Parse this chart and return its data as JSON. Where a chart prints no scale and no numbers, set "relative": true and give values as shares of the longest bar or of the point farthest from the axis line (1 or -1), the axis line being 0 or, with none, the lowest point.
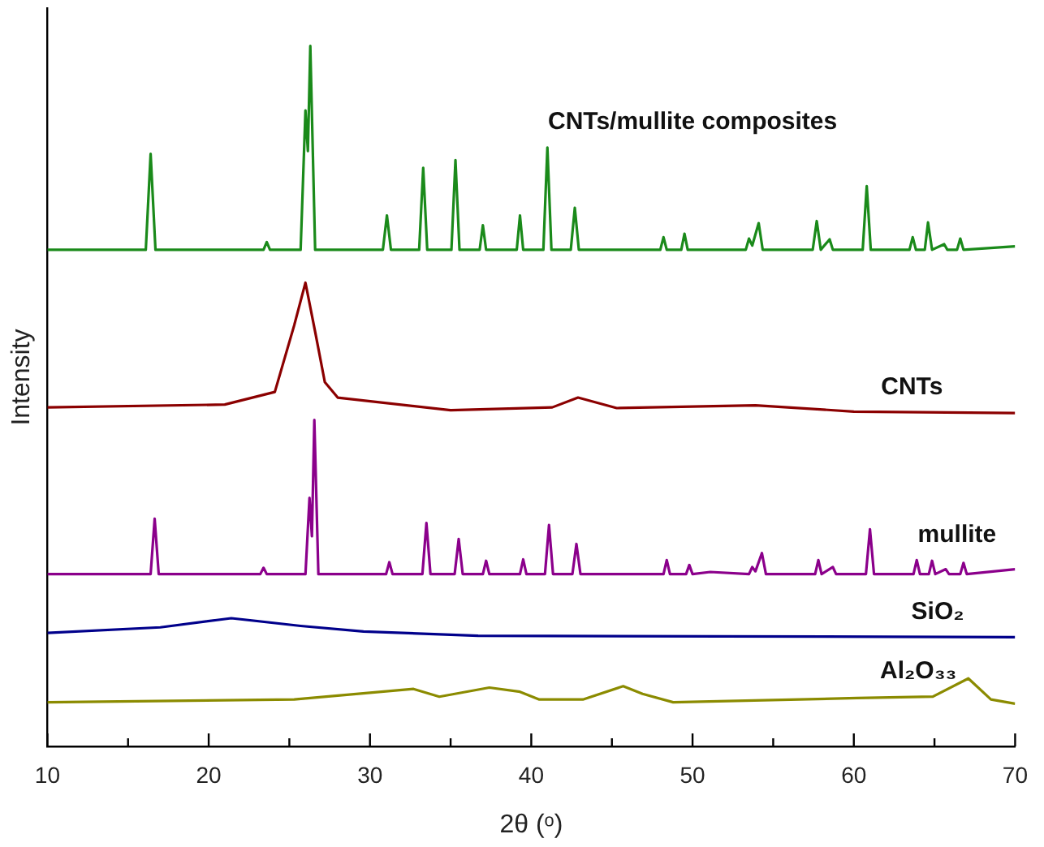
{
  "chart_data": {
    "type": "line",
    "relative": true,
    "xlabel": "2θ (ᵒ)",
    "ylabel": "Intensity",
    "xlim": [
      10,
      70
    ],
    "xticks": [
      10,
      {
        "value": 15,
        "label": null
      },
      20,
      {
        "value": 25,
        "label": null
      },
      30,
      {
        "value": 35,
        "label": null
      },
      40,
      {
        "value": 45,
        "label": null
      },
      50,
      {
        "value": 55,
        "label": null
      },
      60,
      {
        "value": 65,
        "label": null
      },
      70
    ],
    "grid": false,
    "legend": false,
    "marker": "none",
    "line_style": "solid",
    "series": [
      {
        "name": "CNTs/mullite composites",
        "color": "#1a8a1a",
        "x": [
          10,
          16.1,
          16.4,
          16.7,
          23.4,
          23.6,
          23.8,
          25.7,
          26.0,
          26.15,
          26.3,
          26.6,
          30.8,
          31.05,
          31.3,
          33.05,
          33.3,
          33.55,
          35.05,
          35.3,
          35.55,
          36.8,
          37.0,
          37.2,
          39.1,
          39.3,
          39.5,
          40.75,
          41.0,
          41.25,
          42.45,
          42.7,
          42.95,
          48.0,
          48.2,
          48.4,
          49.3,
          49.5,
          49.7,
          53.3,
          53.5,
          53.7,
          54.1,
          54.35,
          57.45,
          57.7,
          57.95,
          58.5,
          58.7,
          60.55,
          60.8,
          61.05,
          63.45,
          63.65,
          63.85,
          64.4,
          64.6,
          64.85,
          65.6,
          65.8,
          66.4,
          66.6,
          66.8,
          70
        ],
        "values": [
          0.709,
          0.709,
          0.846,
          0.709,
          0.709,
          0.72,
          0.709,
          0.709,
          0.908,
          0.85,
          1.0,
          0.709,
          0.709,
          0.758,
          0.709,
          0.709,
          0.826,
          0.709,
          0.709,
          0.837,
          0.709,
          0.709,
          0.744,
          0.709,
          0.709,
          0.758,
          0.709,
          0.709,
          0.855,
          0.709,
          0.709,
          0.769,
          0.709,
          0.709,
          0.727,
          0.709,
          0.709,
          0.732,
          0.709,
          0.709,
          0.725,
          0.715,
          0.747,
          0.709,
          0.709,
          0.75,
          0.709,
          0.724,
          0.709,
          0.709,
          0.8,
          0.709,
          0.709,
          0.727,
          0.709,
          0.709,
          0.748,
          0.709,
          0.717,
          0.709,
          0.709,
          0.725,
          0.709,
          0.714
        ]
      },
      {
        "name": "CNTs",
        "color": "#8b0000",
        "x": [
          10,
          21.0,
          24.1,
          25.3,
          26.0,
          26.6,
          27.2,
          28.0,
          35.0,
          41.3,
          42.9,
          45.3,
          53.9,
          60.0,
          70
        ],
        "values": [
          0.484,
          0.488,
          0.506,
          0.601,
          0.662,
          0.592,
          0.52,
          0.498,
          0.48,
          0.484,
          0.498,
          0.483,
          0.487,
          0.478,
          0.476
        ]
      },
      {
        "name": "mullite",
        "color": "#8b008b",
        "x": [
          10,
          16.4,
          16.65,
          16.9,
          23.2,
          23.4,
          23.6,
          26.0,
          26.25,
          26.4,
          26.55,
          26.8,
          31.0,
          31.2,
          31.4,
          33.25,
          33.5,
          33.75,
          35.25,
          35.5,
          35.75,
          37.0,
          37.2,
          37.4,
          39.3,
          39.5,
          39.7,
          40.85,
          41.1,
          41.35,
          42.55,
          42.8,
          43.05,
          48.2,
          48.4,
          48.6,
          49.6,
          49.8,
          50.0,
          51.1,
          53.5,
          53.7,
          53.9,
          54.3,
          54.55,
          57.6,
          57.8,
          58.0,
          58.7,
          58.9,
          60.75,
          61.0,
          61.25,
          63.7,
          63.9,
          64.1,
          64.65,
          64.85,
          65.05,
          65.7,
          65.9,
          66.6,
          66.8,
          67.0,
          70
        ],
        "values": [
          0.246,
          0.246,
          0.325,
          0.246,
          0.246,
          0.255,
          0.246,
          0.246,
          0.355,
          0.3,
          0.466,
          0.246,
          0.246,
          0.263,
          0.246,
          0.246,
          0.319,
          0.246,
          0.246,
          0.296,
          0.246,
          0.246,
          0.265,
          0.246,
          0.246,
          0.267,
          0.246,
          0.246,
          0.316,
          0.246,
          0.246,
          0.289,
          0.246,
          0.246,
          0.266,
          0.246,
          0.246,
          0.259,
          0.246,
          0.249,
          0.246,
          0.256,
          0.25,
          0.276,
          0.246,
          0.246,
          0.266,
          0.246,
          0.256,
          0.246,
          0.246,
          0.31,
          0.246,
          0.246,
          0.266,
          0.246,
          0.246,
          0.265,
          0.246,
          0.253,
          0.246,
          0.246,
          0.262,
          0.246,
          0.253
        ]
      },
      {
        "name": "SiO₂",
        "color": "#00008b",
        "x": [
          10,
          17.0,
          21.4,
          25.7,
          29.6,
          36.7,
          70
        ],
        "values": [
          0.162,
          0.17,
          0.183,
          0.172,
          0.164,
          0.158,
          0.156
        ]
      },
      {
        "name": "Al₂O₃₃",
        "color": "#8b8b00",
        "x": [
          10,
          25.3,
          32.7,
          34.3,
          37.4,
          39.3,
          40.5,
          43.2,
          45.7,
          46.9,
          48.8,
          60.2,
          64.9,
          67.1,
          68.5,
          70
        ],
        "values": [
          0.063,
          0.067,
          0.082,
          0.071,
          0.084,
          0.078,
          0.067,
          0.067,
          0.086,
          0.075,
          0.063,
          0.069,
          0.071,
          0.097,
          0.067,
          0.061
        ]
      }
    ]
  }
}
